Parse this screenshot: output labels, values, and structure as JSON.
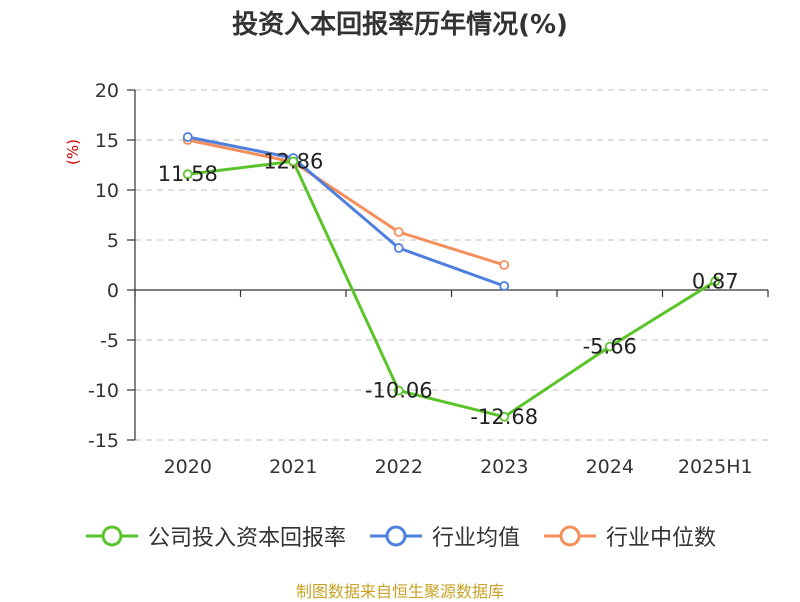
{
  "chart_title": "投资入本回报率历年情况(%)",
  "source_text": "制图数据来自恒生聚源数据库",
  "chart_data": {
    "type": "line",
    "title": "投资入本回报率历年情况(%)",
    "ylabel": "(%)",
    "xlabel": "",
    "categories": [
      "2020",
      "2021",
      "2022",
      "2023",
      "2024",
      "2025H1"
    ],
    "y_ticks": [
      20,
      15,
      10,
      5,
      0,
      -5,
      -10,
      -15
    ],
    "y_tick_labels": [
      "20",
      "15",
      "10",
      "5",
      "0",
      "-5",
      "-10",
      "-15"
    ],
    "ylim": [
      -15,
      20
    ],
    "grid": true,
    "legend_position": "bottom",
    "series": [
      {
        "name": "公司投入资本回报率",
        "color": "#5bc42a",
        "values": [
          11.58,
          12.86,
          -10.06,
          -12.68,
          -5.66,
          0.87
        ],
        "labels": [
          "11.58",
          "12.86",
          "-10.06",
          "-12.68",
          "-5.66",
          "0.87"
        ]
      },
      {
        "name": "行业均值",
        "color": "#4e7fde",
        "values": [
          15.3,
          13.2,
          4.2,
          0.4,
          null,
          null
        ]
      },
      {
        "name": "行业中位数",
        "color": "#f58e5a",
        "values": [
          15.0,
          12.8,
          5.8,
          2.5,
          null,
          null
        ]
      }
    ]
  }
}
